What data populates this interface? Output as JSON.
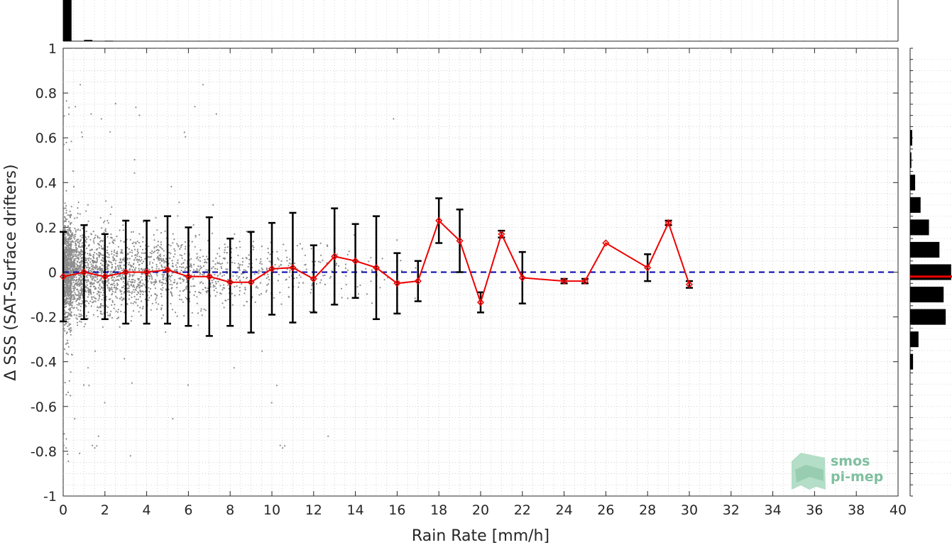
{
  "chart_data": {
    "type": "scatter",
    "xlabel": "Rain Rate [mm/h]",
    "ylabel": "Δ SSS (SAT-Surface drifters)",
    "xlim": [
      0,
      40
    ],
    "ylim": [
      -1,
      1
    ],
    "xticks": [
      "0",
      "2",
      "4",
      "6",
      "8",
      "10",
      "12",
      "14",
      "16",
      "18",
      "20",
      "22",
      "24",
      "26",
      "28",
      "30",
      "32",
      "34",
      "36",
      "38",
      "40"
    ],
    "yticks": [
      "1",
      "0.8",
      "0.6",
      "0.4",
      "0.2",
      "0",
      "-0.2",
      "-0.4",
      "-0.6",
      "-0.8",
      "-1"
    ],
    "grid": true,
    "reference_line": {
      "y": 0,
      "style": "dashed",
      "color": "#0000aa"
    },
    "series": [
      {
        "type": "line_with_errorbars",
        "color": "#ee0000",
        "x": [
          0,
          1,
          2,
          3,
          4,
          5,
          6,
          7,
          8,
          9,
          10,
          11,
          12,
          13,
          14,
          15,
          16,
          17,
          18,
          19,
          20,
          21,
          22,
          24,
          25,
          26,
          28,
          29,
          30
        ],
        "y": [
          -0.02,
          0.0,
          -0.02,
          0.0,
          0.0,
          0.01,
          -0.02,
          -0.02,
          -0.045,
          -0.045,
          0.015,
          0.02,
          -0.03,
          0.07,
          0.05,
          0.02,
          -0.05,
          -0.04,
          0.23,
          0.14,
          -0.135,
          0.17,
          -0.025,
          -0.04,
          -0.04,
          0.13,
          0.02,
          0.22,
          -0.055
        ],
        "err": [
          0.2,
          0.21,
          0.19,
          0.23,
          0.23,
          0.24,
          0.22,
          0.265,
          0.195,
          0.225,
          0.205,
          0.245,
          0.15,
          0.215,
          0.165,
          0.23,
          0.135,
          0.09,
          0.1,
          0.14,
          0.045,
          0.015,
          0.115,
          0.01,
          0.01,
          0.0,
          0.06,
          0.01,
          0.015
        ]
      }
    ],
    "scatter_cloud": {
      "color": "#808080",
      "description_points": "gray points dense near x=0-5, spread within ±0.5, sparse to x≈17"
    },
    "top_histogram": {
      "color": "#000000",
      "bins_x": [
        0,
        1,
        2
      ],
      "counts_rel": [
        1.0,
        0.03,
        0.01
      ]
    },
    "right_histogram": {
      "color": "#000000",
      "bins_y": [
        0.6,
        0.5,
        0.4,
        0.3,
        0.2,
        0.1,
        0.0,
        -0.1,
        -0.2,
        -0.3,
        -0.4
      ],
      "counts_rel": [
        0.05,
        0.03,
        0.12,
        0.25,
        0.45,
        0.7,
        0.98,
        0.8,
        0.85,
        0.2,
        0.07
      ],
      "median_line": {
        "y": -0.02,
        "color": "#ee0000"
      }
    },
    "watermark": {
      "line1": "smos",
      "line2": "pi-mep"
    }
  }
}
